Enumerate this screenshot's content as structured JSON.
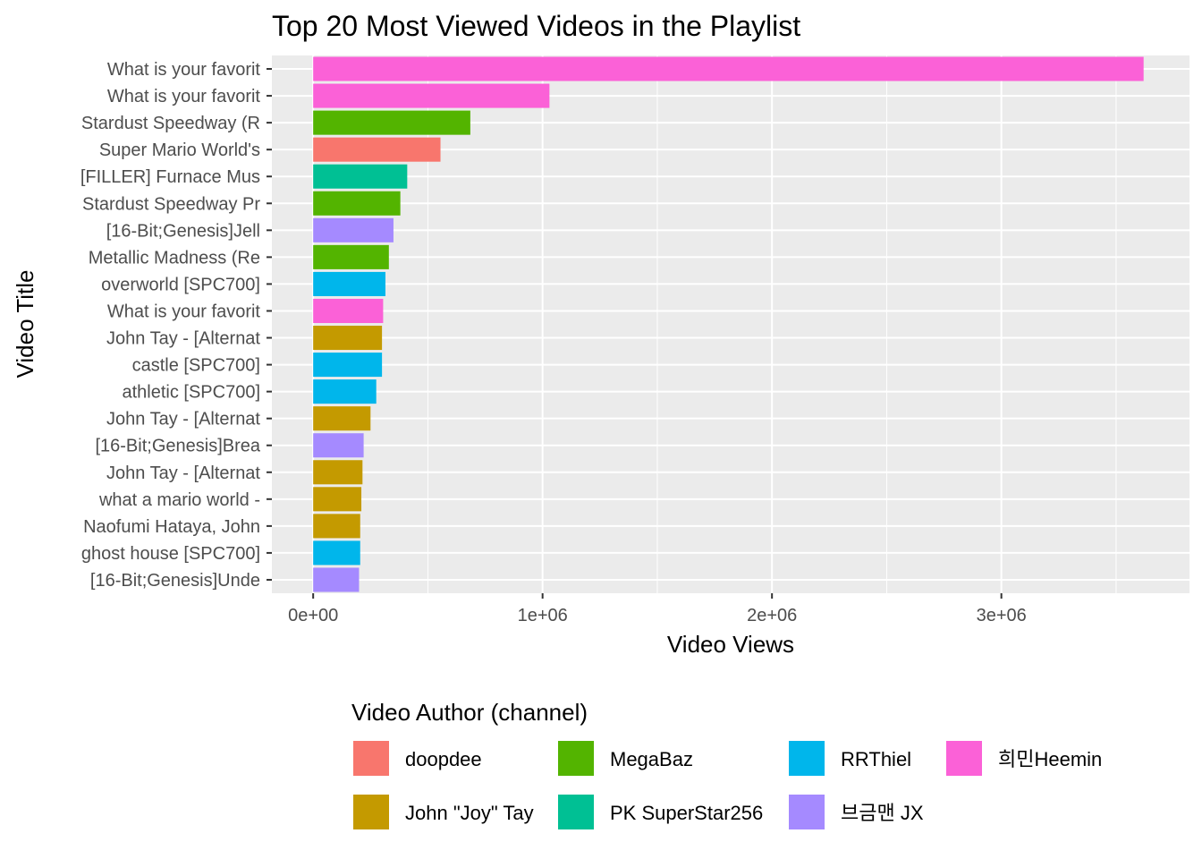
{
  "chart_data": {
    "type": "bar",
    "orientation": "horizontal",
    "title": "Top 20 Most Viewed Videos in the Playlist",
    "xlabel": "Video Views",
    "ylabel": "Video Title",
    "xlim": [
      -180000,
      3820000
    ],
    "x_ticks": [
      0,
      1000000,
      2000000,
      3000000
    ],
    "x_tick_labels": [
      "0e+00",
      "1e+06",
      "2e+06",
      "3e+06"
    ],
    "grid": true,
    "background": "#ebebeb",
    "legend": {
      "title": "Video Author (channel)",
      "placement": "bottom",
      "entries": [
        {
          "name": "doopdee",
          "color": "#F8766D"
        },
        {
          "name": "John \"Joy\" Tay",
          "color": "#C49A00"
        },
        {
          "name": "MegaBaz",
          "color": "#53B400"
        },
        {
          "name": "PK SuperStar256",
          "color": "#00C094"
        },
        {
          "name": "RRThiel",
          "color": "#00B6EB"
        },
        {
          "name": "브금맨 JX",
          "color": "#A58AFF"
        },
        {
          "name": "희민Heemin",
          "color": "#FB61D7"
        }
      ]
    },
    "bars": [
      {
        "title": "What is your favorit",
        "value": 3620000,
        "author": "희민Heemin"
      },
      {
        "title": "What is your favorit",
        "value": 1030000,
        "author": "희민Heemin"
      },
      {
        "title": "Stardust Speedway (R",
        "value": 685000,
        "author": "MegaBaz"
      },
      {
        "title": "Super Mario World's ",
        "value": 555000,
        "author": "doopdee"
      },
      {
        "title": "[FILLER] Furnace Mus",
        "value": 410000,
        "author": "PK SuperStar256"
      },
      {
        "title": "Stardust Speedway Pr",
        "value": 380000,
        "author": "MegaBaz"
      },
      {
        "title": "[16-Bit;Genesis]Jell",
        "value": 350000,
        "author": "브금맨 JX"
      },
      {
        "title": "Metallic Madness (Re",
        "value": 330000,
        "author": "MegaBaz"
      },
      {
        "title": "overworld [SPC700]",
        "value": 315000,
        "author": "RRThiel"
      },
      {
        "title": "What is your favorit",
        "value": 305000,
        "author": "희민Heemin"
      },
      {
        "title": "John Tay - [Alternat",
        "value": 300000,
        "author": "John \"Joy\" Tay"
      },
      {
        "title": "castle [SPC700]",
        "value": 300000,
        "author": "RRThiel"
      },
      {
        "title": "athletic [SPC700]",
        "value": 275000,
        "author": "RRThiel"
      },
      {
        "title": "John Tay - [Alternat",
        "value": 250000,
        "author": "John \"Joy\" Tay"
      },
      {
        "title": "[16-Bit;Genesis]Brea",
        "value": 220000,
        "author": "브금맨 JX"
      },
      {
        "title": "John Tay - [Alternat",
        "value": 215000,
        "author": "John \"Joy\" Tay"
      },
      {
        "title": "what a mario world -",
        "value": 210000,
        "author": "John \"Joy\" Tay"
      },
      {
        "title": "Naofumi Hataya, John",
        "value": 205000,
        "author": "John \"Joy\" Tay"
      },
      {
        "title": "ghost house [SPC700]",
        "value": 205000,
        "author": "RRThiel"
      },
      {
        "title": "[16-Bit;Genesis]Unde",
        "value": 200000,
        "author": "브금맨 JX"
      }
    ]
  }
}
